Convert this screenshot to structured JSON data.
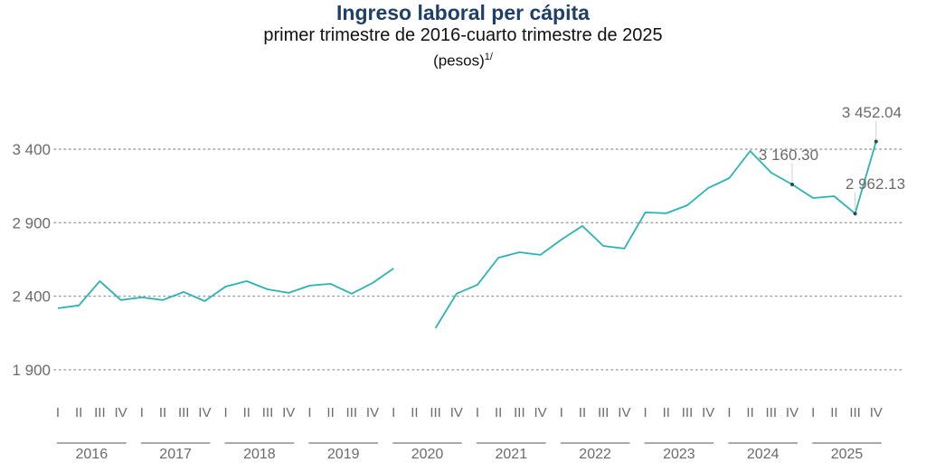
{
  "header": {
    "title": "Ingreso laboral per cápita",
    "subtitle": "primer trimestre de 2016-cuarto trimestre de 2025",
    "unit": "(pesos)",
    "unit_note": "1/"
  },
  "colors": {
    "line": "#2bb3b3",
    "title": "#1f3f66",
    "axis_text": "#6b6b6b",
    "grid": "#9a9a9a"
  },
  "chart_data": {
    "type": "line",
    "title": "Ingreso laboral per cápita",
    "subtitle": "primer trimestre de 2016-cuarto trimestre de 2025",
    "xlabel": "",
    "ylabel": "(pesos)",
    "ylim": [
      1900,
      3452.04
    ],
    "yticks": [
      1900,
      2400,
      2900,
      3400
    ],
    "ytick_labels": [
      "1 900",
      "2 400",
      "2 900",
      "3 400"
    ],
    "grid": true,
    "grid_style": "dotted-horizontal",
    "legend": "none",
    "quarter_labels": [
      "I",
      "II",
      "III",
      "IV"
    ],
    "years": [
      "2016",
      "2017",
      "2018",
      "2019",
      "2020",
      "2021",
      "2022",
      "2023",
      "2024",
      "2025"
    ],
    "series": [
      {
        "name": "Ingreso laboral per cápita",
        "values": [
          2318,
          2337,
          2503,
          2374,
          2392,
          2374,
          2429,
          2367,
          2466,
          2503,
          2447,
          2423,
          2472,
          2484,
          2417,
          2490,
          2589,
          null,
          2183,
          2417,
          2478,
          2662,
          2699,
          2681,
          2785,
          2878,
          2742,
          2724,
          2970,
          2964,
          3019,
          3136,
          3203,
          3388,
          3240,
          3160.3,
          3068,
          3080,
          2962.13,
          3452.04
        ]
      }
    ],
    "annotations": [
      {
        "index": 35,
        "label": "3 160.30",
        "value": 3160.3
      },
      {
        "index": 38,
        "label": "2 962.13",
        "value": 2962.13
      },
      {
        "index": 39,
        "label": "3 452.04",
        "value": 3452.04
      }
    ]
  }
}
